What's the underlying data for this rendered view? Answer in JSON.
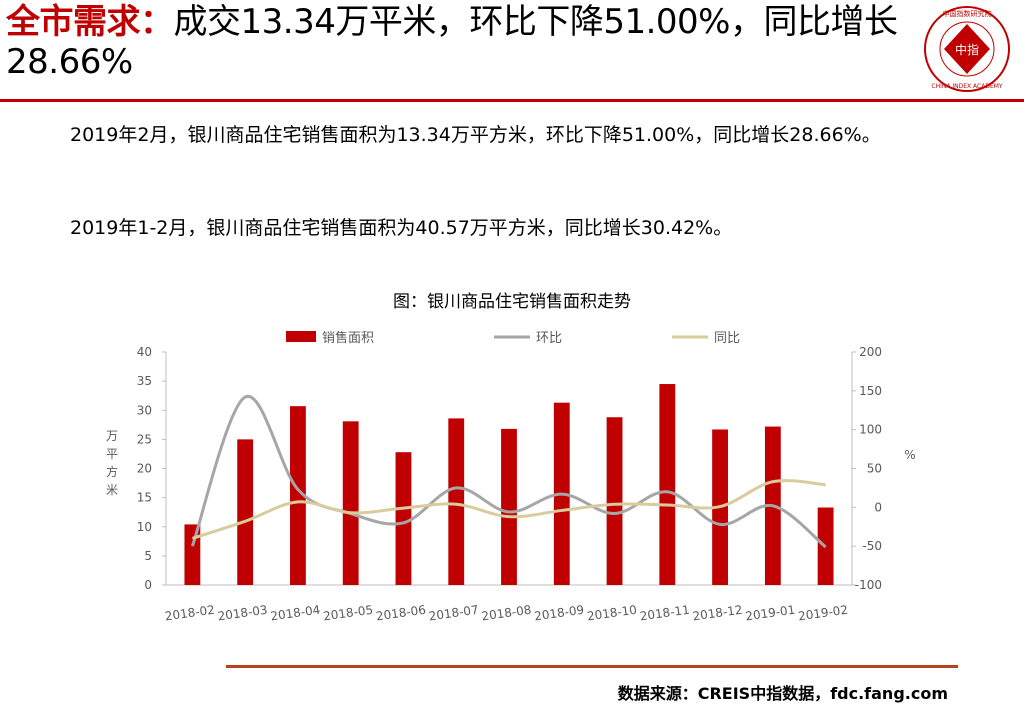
{
  "header": {
    "title_highlight": "全市需求：",
    "title_rest": "成交13.34万平米，环比下降51.00%，同比增长28.66%"
  },
  "logo": {
    "ring_text": "CHINA INDEX ACADEMY",
    "center_text": "中指",
    "top_text": "中国指数研究院"
  },
  "body": {
    "para1": "2019年2月，银川商品住宅销售面积为13.34万平方米，环比下降51.00%，同比增长28.66%。",
    "para2": "2019年1-2月，银川商品住宅销售面积为40.57万平方米，同比增长30.42%。"
  },
  "chart_data": {
    "type": "bar",
    "title": "图：银川商品住宅销售面积走势",
    "categories": [
      "2018-02",
      "2018-03",
      "2018-04",
      "2018-05",
      "2018-06",
      "2018-07",
      "2018-08",
      "2018-09",
      "2018-10",
      "2018-11",
      "2018-12",
      "2019-01",
      "2019-02"
    ],
    "series": [
      {
        "name": "销售面积",
        "kind": "bar",
        "axis": "left",
        "color": "#c00000",
        "values": [
          10.4,
          25.0,
          30.7,
          28.1,
          22.8,
          28.6,
          26.8,
          31.3,
          28.8,
          34.5,
          26.7,
          27.2,
          13.3
        ]
      },
      {
        "name": "环比",
        "kind": "line",
        "axis": "right",
        "color": "#a6a6a6",
        "values": [
          -50,
          142,
          23,
          -8,
          -20,
          25,
          -6,
          17,
          -8,
          20,
          -22,
          2,
          -51
        ]
      },
      {
        "name": "同比",
        "kind": "line",
        "axis": "right",
        "color": "#d9cc9c",
        "values": [
          -40,
          -18,
          7,
          -7,
          -1,
          4,
          -12,
          -4,
          4,
          3,
          1,
          33,
          29
        ]
      }
    ],
    "ylabel": "万平方米",
    "y2label": "%",
    "ylim": [
      0,
      40
    ],
    "y2lim": [
      -100,
      200
    ],
    "yticks": [
      0,
      5,
      10,
      15,
      20,
      25,
      30,
      35,
      40
    ],
    "y2ticks": [
      -100,
      -50,
      0,
      50,
      100,
      150,
      200
    ],
    "legend": "top",
    "grid": false
  },
  "footer": {
    "source": "数据来源：CREIS中指数据，fdc.fang.com"
  }
}
